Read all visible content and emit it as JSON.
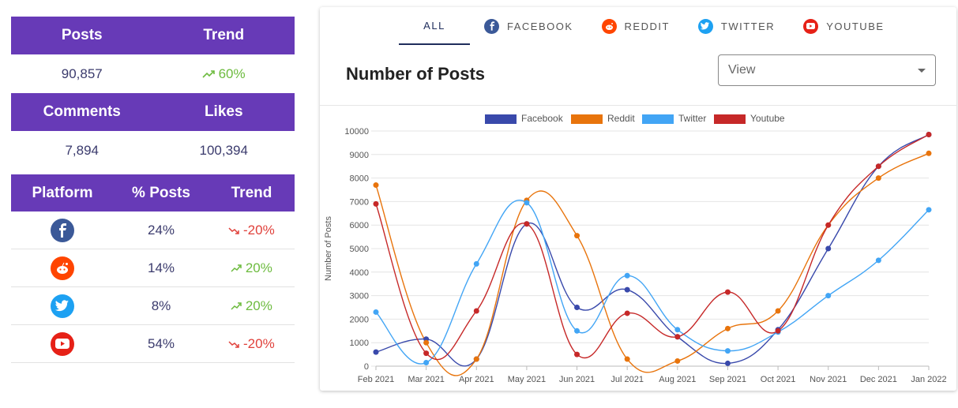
{
  "stats": {
    "posts_header": "Posts",
    "trend_header": "Trend",
    "posts_value": "90,857",
    "posts_trend": "60%",
    "comments_header": "Comments",
    "likes_header": "Likes",
    "comments_value": "7,894",
    "likes_value": "100,394"
  },
  "platform_table": {
    "headers": [
      "Platform",
      "% Posts",
      "Trend"
    ],
    "rows": [
      {
        "platform": "facebook",
        "icon": "facebook-icon",
        "color": "#3b5998",
        "percent": "24%",
        "trend": "-20%",
        "direction": "down"
      },
      {
        "platform": "reddit",
        "icon": "reddit-icon",
        "color": "#ff4500",
        "percent": "14%",
        "trend": "20%",
        "direction": "up"
      },
      {
        "platform": "twitter",
        "icon": "twitter-icon",
        "color": "#1da1f2",
        "percent": "8%",
        "trend": "20%",
        "direction": "up"
      },
      {
        "platform": "youtube",
        "icon": "youtube-icon",
        "color": "#e62117",
        "percent": "54%",
        "trend": "-20%",
        "direction": "down"
      }
    ]
  },
  "tabs": [
    {
      "label": "ALL",
      "icon": "",
      "active": true
    },
    {
      "label": "FACEBOOK",
      "icon": "facebook-icon",
      "color": "#3b5998"
    },
    {
      "label": "REDDIT",
      "icon": "reddit-icon",
      "color": "#ff4500"
    },
    {
      "label": "TWITTER",
      "icon": "twitter-icon",
      "color": "#1da1f2"
    },
    {
      "label": "YOUTUBE",
      "icon": "youtube-icon",
      "color": "#e62117"
    }
  ],
  "card": {
    "title": "Number of Posts",
    "select_placeholder": "View"
  },
  "chart_data": {
    "type": "line",
    "ylabel": "Number of Posts",
    "xlabel": "",
    "ylim": [
      0,
      10000
    ],
    "yticks": [
      0,
      1000,
      2000,
      3000,
      4000,
      5000,
      6000,
      7000,
      8000,
      9000,
      10000
    ],
    "grid": true,
    "legend": "top",
    "categories": [
      "Feb 2021",
      "Mar 2021",
      "Apr 2021",
      "May 2021",
      "Jun 2021",
      "Jul 2021",
      "Aug 2021",
      "Sep 2021",
      "Oct 2021",
      "Nov 2021",
      "Dec 2021",
      "Jan 2022"
    ],
    "series": [
      {
        "name": "Facebook",
        "color": "#3949ab",
        "values": [
          600,
          1150,
          300,
          6050,
          2500,
          3250,
          1250,
          120,
          1550,
          5000,
          8500,
          9850
        ]
      },
      {
        "name": "Reddit",
        "color": "#e8740c",
        "values": [
          7700,
          1000,
          300,
          7050,
          5550,
          300,
          220,
          1600,
          2350,
          6000,
          8000,
          9050
        ]
      },
      {
        "name": "Twitter",
        "color": "#42a5f5",
        "values": [
          2300,
          150,
          4350,
          6950,
          1500,
          3850,
          1550,
          650,
          1450,
          3000,
          4500,
          6650
        ]
      },
      {
        "name": "Youtube",
        "color": "#c62828",
        "values": [
          6900,
          550,
          2350,
          6050,
          500,
          2250,
          1250,
          3150,
          1500,
          6000,
          8500,
          9850
        ]
      }
    ]
  }
}
